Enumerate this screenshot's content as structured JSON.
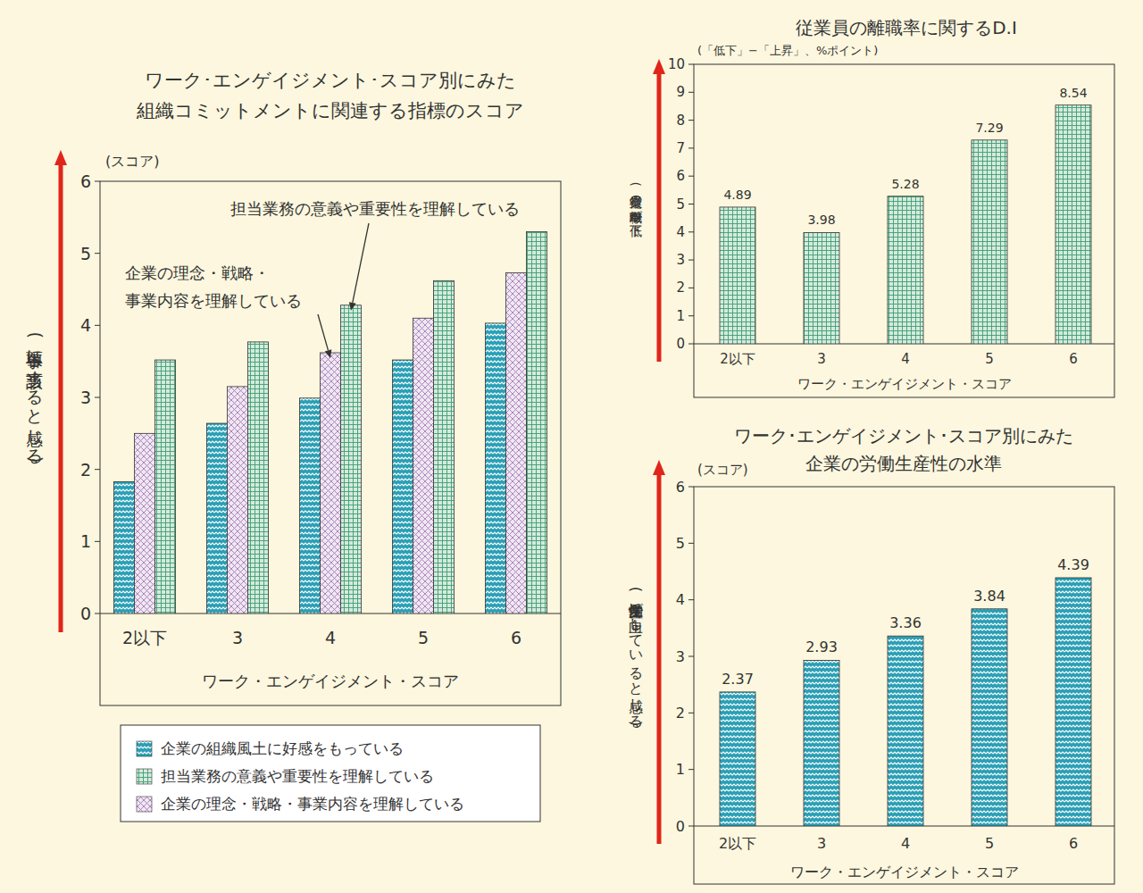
{
  "chart_data": [
    {
      "type": "bar",
      "title": [
        "ワーク･エンゲイジメント･スコア別にみた",
        "組織コミットメントに関連する指標のスコア"
      ],
      "unit_label": "(スコア)",
      "y_label": "(各事項に該当すると感じる)",
      "x_label": "ワーク・エンゲイジメント・スコア",
      "categories": [
        "2以下",
        "3",
        "4",
        "5",
        "6"
      ],
      "series": [
        {
          "name": "企業の組織風土に好感をもっている",
          "color": "#2a9fb5",
          "values": [
            1.83,
            2.64,
            2.99,
            3.52,
            4.03
          ]
        },
        {
          "name": "担当業務の意義や重要性を理解している",
          "color": "#3e9e6e",
          "values": [
            3.52,
            3.77,
            4.28,
            4.62,
            5.3
          ]
        },
        {
          "name": "企業の理念・戦略・事業内容を理解している",
          "color": "#a77bb5",
          "values": [
            2.5,
            3.15,
            3.62,
            4.1,
            4.73
          ]
        }
      ],
      "annotations": [
        [
          "担当業務の意義や重要性を理解している"
        ],
        [
          "企業の理念・戦略・",
          "事業内容を理解している"
        ]
      ],
      "ylim": [
        0,
        6
      ],
      "yticks": [
        0,
        1,
        2,
        3,
        4,
        5,
        6
      ],
      "legend": "bottom"
    },
    {
      "type": "bar",
      "title": "従業員の離職率に関するD.I",
      "subtitle": "(「低下」−「上昇」、%ポイント)",
      "y_label": "(従業員の離職率が低下)",
      "x_label": "ワーク・エンゲイジメント・スコア",
      "categories": [
        "2以下",
        "3",
        "4",
        "5",
        "6"
      ],
      "values": [
        4.89,
        3.98,
        5.28,
        7.29,
        8.54
      ],
      "color": "#3e9e6e",
      "ylim": [
        0,
        10
      ],
      "yticks": [
        0,
        1,
        2,
        3,
        4,
        5,
        6,
        7,
        8,
        9,
        10
      ],
      "data_labels": true
    },
    {
      "type": "bar",
      "title": [
        "ワーク･エンゲイジメント･スコア別にみた",
        "企業の労働生産性の水準"
      ],
      "unit_label": "(スコア)",
      "y_label": "(労働生産性が向上していると感じる)",
      "x_label": "ワーク・エンゲイジメント・スコア",
      "categories": [
        "2以下",
        "3",
        "4",
        "5",
        "6"
      ],
      "values": [
        2.37,
        2.93,
        3.36,
        3.84,
        4.39
      ],
      "color": "#2a9fb5",
      "ylim": [
        0,
        6
      ],
      "yticks": [
        0,
        1,
        2,
        3,
        4,
        5,
        6
      ],
      "data_labels": true
    }
  ]
}
